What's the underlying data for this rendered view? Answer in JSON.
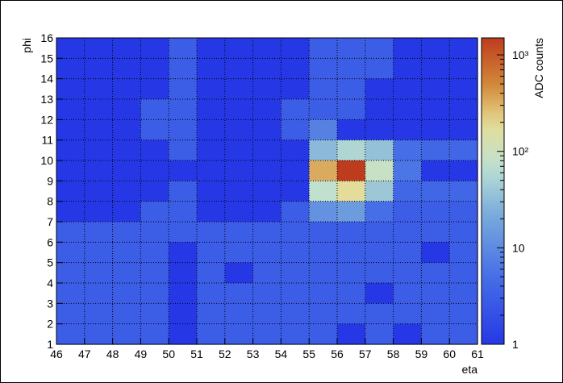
{
  "chart_data": {
    "type": "heatmap",
    "title": "",
    "xlabel": "eta",
    "ylabel": "phi",
    "colorbar_label": "ADC counts",
    "x_range": [
      46,
      61
    ],
    "y_range": [
      1,
      16
    ],
    "x_ticks": [
      "46",
      "47",
      "48",
      "49",
      "50",
      "51",
      "52",
      "53",
      "54",
      "55",
      "56",
      "57",
      "58",
      "59",
      "60",
      "61"
    ],
    "y_ticks": [
      "1",
      "2",
      "3",
      "4",
      "5",
      "6",
      "7",
      "8",
      "9",
      "10",
      "11",
      "12",
      "13",
      "14",
      "15",
      "16"
    ],
    "z_scale": "log",
    "z_range": [
      1,
      1500
    ],
    "colorbar_ticks": [
      {
        "value": 1,
        "label": "1"
      },
      {
        "value": 10,
        "label": "10"
      },
      {
        "value": 100,
        "label": "10²"
      },
      {
        "value": 1000,
        "label": "10³"
      }
    ],
    "grid": true,
    "rows_description": "values[row] for phi bins starting at row 0 = [15,16] down to row 14 = [1,2]; columns eta 46..60",
    "values": [
      [
        1,
        1,
        1,
        1,
        3,
        1,
        1,
        1,
        1,
        3,
        3,
        3,
        1,
        1,
        1
      ],
      [
        1,
        1,
        1,
        1,
        3,
        1,
        1,
        1,
        1,
        3,
        3,
        3,
        1,
        1,
        1
      ],
      [
        1,
        1,
        1,
        1,
        3,
        1,
        1,
        1,
        1,
        3,
        3,
        1,
        1,
        1,
        1
      ],
      [
        1,
        1,
        1,
        3,
        3,
        1,
        1,
        1,
        3,
        3,
        3,
        1,
        1,
        1,
        1
      ],
      [
        1,
        1,
        1,
        3,
        3,
        1,
        1,
        1,
        3,
        8,
        1,
        1,
        1,
        1,
        1
      ],
      [
        1,
        1,
        1,
        1,
        3,
        1,
        1,
        1,
        1,
        30,
        55,
        35,
        5,
        4,
        4
      ],
      [
        1,
        1,
        1,
        1,
        1,
        1,
        1,
        1,
        1,
        330,
        1500,
        90,
        6,
        1,
        1
      ],
      [
        1,
        1,
        1,
        1,
        3,
        1,
        1,
        1,
        1,
        75,
        180,
        40,
        4,
        4,
        4
      ],
      [
        1,
        1,
        1,
        3,
        3,
        1,
        1,
        1,
        3,
        12,
        15,
        5,
        3,
        3,
        3
      ],
      [
        3,
        3,
        3,
        3,
        3,
        3,
        3,
        3,
        3,
        3,
        3,
        3,
        3,
        3,
        3
      ],
      [
        3,
        3,
        3,
        3,
        1,
        3,
        3,
        3,
        3,
        3,
        3,
        3,
        3,
        1,
        3
      ],
      [
        3,
        3,
        3,
        3,
        1,
        3,
        1,
        3,
        3,
        3,
        3,
        3,
        3,
        3,
        3
      ],
      [
        3,
        3,
        3,
        3,
        1,
        3,
        3,
        3,
        3,
        3,
        3,
        1,
        3,
        3,
        3
      ],
      [
        3,
        3,
        3,
        3,
        1,
        3,
        3,
        3,
        3,
        3,
        3,
        3,
        3,
        3,
        3
      ],
      [
        3,
        3,
        3,
        3,
        1,
        3,
        3,
        3,
        3,
        3,
        1,
        3,
        1,
        3,
        3
      ]
    ]
  }
}
